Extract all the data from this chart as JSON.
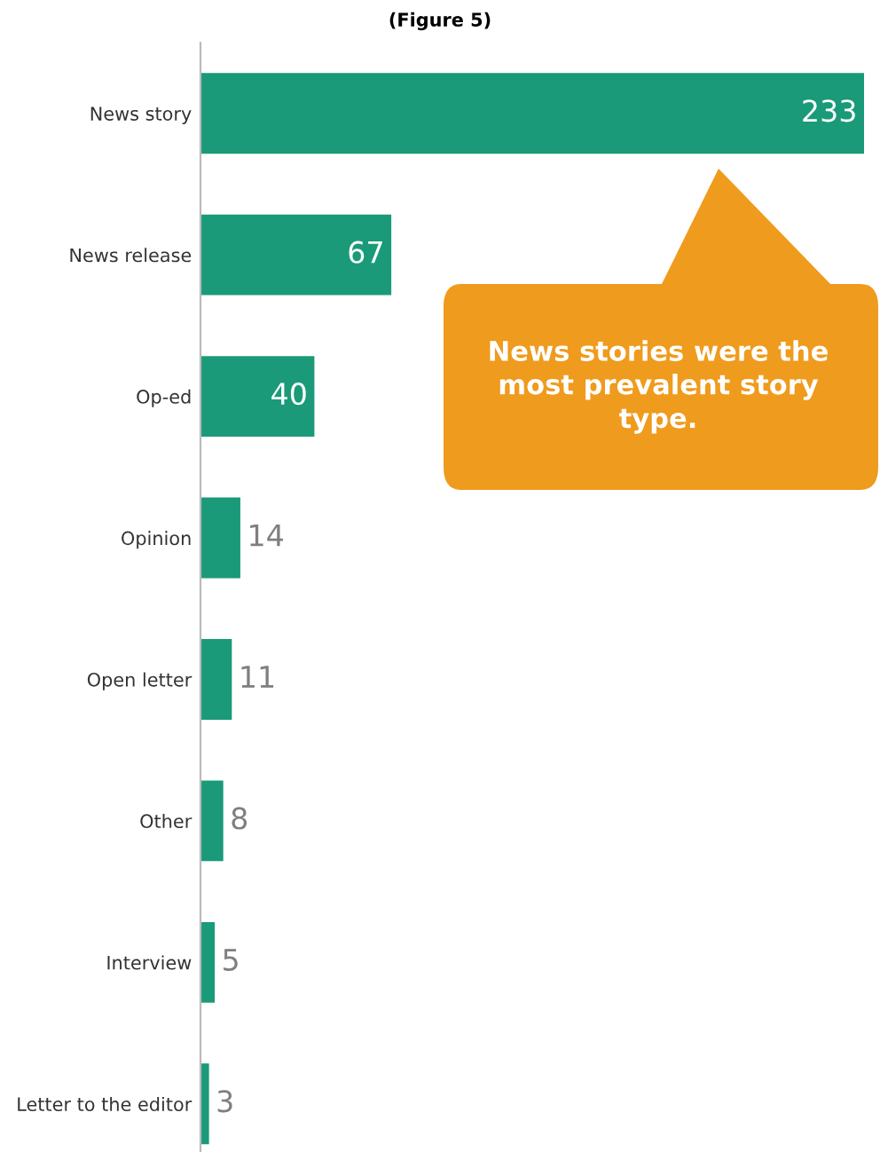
{
  "chart_data": {
    "type": "bar",
    "orientation": "horizontal",
    "title": "(Figure 5)",
    "categories": [
      "News story",
      "News release",
      "Op-ed",
      "Opinion",
      "Open letter",
      "Other",
      "Interview",
      "Letter to the editor"
    ],
    "values": [
      233,
      67,
      40,
      14,
      11,
      8,
      5,
      3
    ],
    "color": "#1a9a78",
    "data_labels": true,
    "grid": false,
    "annotations": [
      "News stories were the\nmost prevalent story\ntype."
    ]
  }
}
